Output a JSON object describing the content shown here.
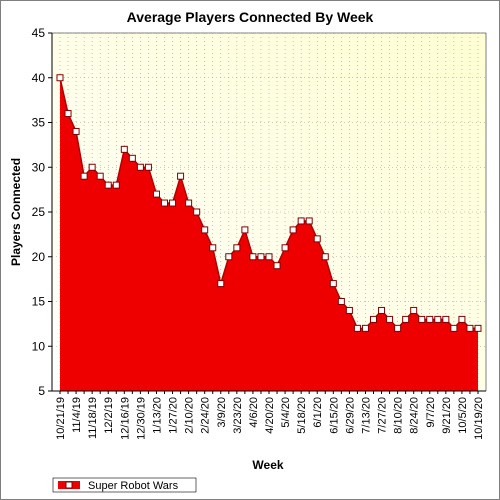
{
  "chart_data": {
    "type": "area",
    "title": "Average Players Connected By Week",
    "xlabel": "Week",
    "ylabel": "Players Connected",
    "ylim": [
      5,
      45
    ],
    "yticks": [
      5,
      10,
      15,
      20,
      25,
      30,
      35,
      40,
      45
    ],
    "grid": true,
    "legend_position": "bottom-left",
    "colors": {
      "fill": "#ee0000",
      "line": "#b00000",
      "marker_fill": "#ffffff",
      "marker_stroke": "#800000",
      "plot_bg_light": "#ffffff",
      "plot_bg_dark": "#ffffd2",
      "grid": "#999999"
    },
    "x_labels": [
      "10/21/19",
      "11/4/19",
      "11/18/19",
      "12/2/19",
      "12/16/19",
      "12/30/19",
      "1/13/20",
      "1/27/20",
      "2/10/20",
      "2/24/20",
      "3/9/20",
      "3/23/20",
      "4/6/20",
      "4/20/20",
      "5/4/20",
      "5/18/20",
      "6/1/20",
      "6/15/20",
      "6/29/20",
      "7/13/20",
      "7/27/20",
      "8/10/20",
      "8/24/20",
      "9/7/20",
      "9/21/20",
      "10/5/20",
      "10/19/20"
    ],
    "series": [
      {
        "name": "Super Robot Wars",
        "values": [
          40,
          36,
          34,
          29,
          30,
          29,
          28,
          28,
          32,
          31,
          30,
          30,
          27,
          26,
          26,
          29,
          26,
          25,
          23,
          21,
          17,
          20,
          21,
          23,
          20,
          20,
          20,
          19,
          21,
          23,
          24,
          24,
          22,
          20,
          17,
          15,
          14,
          12,
          12,
          13,
          14,
          13,
          12,
          13,
          14,
          13,
          13,
          13,
          13,
          12,
          13,
          12,
          12
        ]
      }
    ]
  }
}
